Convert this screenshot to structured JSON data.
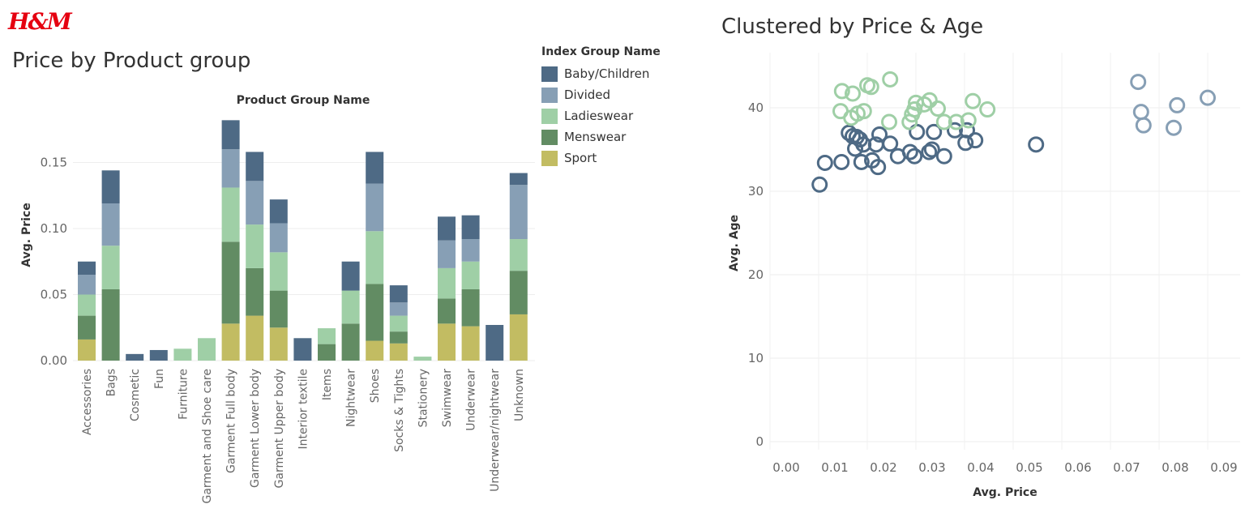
{
  "logo": "H&M",
  "colors": {
    "Baby/Children": "#4e6a85",
    "Divided": "#879fb5",
    "Ladieswear": "#9fcfa6",
    "Menswear": "#628c63",
    "Sport": "#c2bc62"
  },
  "legend": {
    "title": "Index Group Name",
    "items": [
      "Baby/Children",
      "Divided",
      "Ladieswear",
      "Menswear",
      "Sport"
    ]
  },
  "chart_data": [
    {
      "type": "bar",
      "stacked": true,
      "title": "Price by Product group",
      "header": "Product Group Name",
      "ylabel": "Avg. Price",
      "ylim": [
        0,
        0.19
      ],
      "yticks": [
        "0.00",
        "0.05",
        "0.10",
        "0.15"
      ],
      "grid": true,
      "legend_placement": "right",
      "categories": [
        "Accessories",
        "Bags",
        "Cosmetic",
        "Fun",
        "Furniture",
        "Garment and Shoe care",
        "Garment Full body",
        "Garment Lower body",
        "Garment Upper body",
        "Interior textile",
        "Items",
        "Nightwear",
        "Shoes",
        "Socks & Tights",
        "Stationery",
        "Swimwear",
        "Underwear",
        "Underwear/nightwear",
        "Unknown"
      ],
      "series": [
        {
          "name": "Sport",
          "values": [
            0.016,
            0,
            0,
            0,
            0,
            0,
            0.028,
            0.034,
            0.025,
            0,
            0,
            0,
            0.015,
            0.013,
            0,
            0.028,
            0.026,
            0,
            0.035
          ]
        },
        {
          "name": "Menswear",
          "values": [
            0.018,
            0.054,
            0,
            0,
            0,
            0,
            0.062,
            0.036,
            0.028,
            0,
            0.0125,
            0.028,
            0.043,
            0.009,
            0,
            0.019,
            0.028,
            0,
            0.033
          ]
        },
        {
          "name": "Ladieswear",
          "values": [
            0.016,
            0.033,
            0,
            0,
            0.009,
            0.017,
            0.041,
            0.033,
            0.029,
            0,
            0.012,
            0.025,
            0.04,
            0.012,
            0.003,
            0.023,
            0.021,
            0,
            0.024
          ]
        },
        {
          "name": "Divided",
          "values": [
            0.015,
            0.032,
            0,
            0,
            0,
            0,
            0.029,
            0.033,
            0.022,
            0,
            0,
            0,
            0.036,
            0.01,
            0,
            0.021,
            0.017,
            0,
            0.041
          ]
        },
        {
          "name": "Baby/Children",
          "values": [
            0.01,
            0.025,
            0.005,
            0.008,
            0,
            0,
            0.022,
            0.022,
            0.018,
            0.017,
            0,
            0.022,
            0.024,
            0.013,
            0,
            0.018,
            0.018,
            0.027,
            0.009
          ]
        }
      ]
    },
    {
      "type": "scatter",
      "title": "Clustered by Price & Age",
      "xlabel": "Avg. Price",
      "ylabel": "Avg. Age",
      "xlim": [
        0,
        0.097
      ],
      "ylim": [
        0,
        46
      ],
      "xticks": [
        "0.00",
        "0.01",
        "0.02",
        "0.03",
        "0.04",
        "0.05",
        "0.06",
        "0.07",
        "0.08",
        "0.09"
      ],
      "yticks": [
        "0",
        "10",
        "20",
        "30",
        "40"
      ],
      "grid": true,
      "series": [
        {
          "cluster": "Baby/Children",
          "points": [
            [
              0.0102,
              30.8
            ],
            [
              0.0113,
              33.4
            ],
            [
              0.0147,
              33.5
            ],
            [
              0.0162,
              37.0
            ],
            [
              0.017,
              36.6
            ],
            [
              0.0178,
              36.5
            ],
            [
              0.0185,
              36.2
            ],
            [
              0.0175,
              35.1
            ],
            [
              0.0192,
              35.6
            ],
            [
              0.0188,
              33.5
            ],
            [
              0.021,
              33.7
            ],
            [
              0.0222,
              32.9
            ],
            [
              0.0225,
              36.8
            ],
            [
              0.0218,
              35.6
            ],
            [
              0.0247,
              35.7
            ],
            [
              0.0263,
              34.2
            ],
            [
              0.0288,
              34.7
            ],
            [
              0.0297,
              34.2
            ],
            [
              0.0302,
              37.1
            ],
            [
              0.0327,
              34.7
            ],
            [
              0.0333,
              35.0
            ],
            [
              0.0337,
              37.1
            ],
            [
              0.0358,
              34.2
            ],
            [
              0.038,
              37.3
            ],
            [
              0.0402,
              35.8
            ],
            [
              0.0405,
              37.3
            ],
            [
              0.0422,
              36.1
            ],
            [
              0.0547,
              35.6
            ]
          ]
        },
        {
          "cluster": "Ladieswear",
          "points": [
            [
              0.0148,
              42.0
            ],
            [
              0.017,
              41.7
            ],
            [
              0.02,
              42.7
            ],
            [
              0.0208,
              42.5
            ],
            [
              0.0247,
              43.4
            ],
            [
              0.0145,
              39.6
            ],
            [
              0.0167,
              38.8
            ],
            [
              0.018,
              39.3
            ],
            [
              0.0193,
              39.6
            ],
            [
              0.0245,
              38.3
            ],
            [
              0.0287,
              38.3
            ],
            [
              0.0292,
              39.2
            ],
            [
              0.0297,
              39.8
            ],
            [
              0.03,
              40.6
            ],
            [
              0.0317,
              40.4
            ],
            [
              0.0328,
              40.9
            ],
            [
              0.0345,
              39.9
            ],
            [
              0.0358,
              38.3
            ],
            [
              0.0383,
              38.3
            ],
            [
              0.0408,
              38.5
            ],
            [
              0.0417,
              40.8
            ],
            [
              0.0447,
              39.8
            ]
          ]
        },
        {
          "cluster": "Divided",
          "points": [
            [
              0.0757,
              43.1
            ],
            [
              0.0763,
              39.5
            ],
            [
              0.0768,
              37.9
            ],
            [
              0.0837,
              40.3
            ],
            [
              0.083,
              37.6
            ],
            [
              0.09,
              41.2
            ]
          ]
        }
      ]
    }
  ]
}
